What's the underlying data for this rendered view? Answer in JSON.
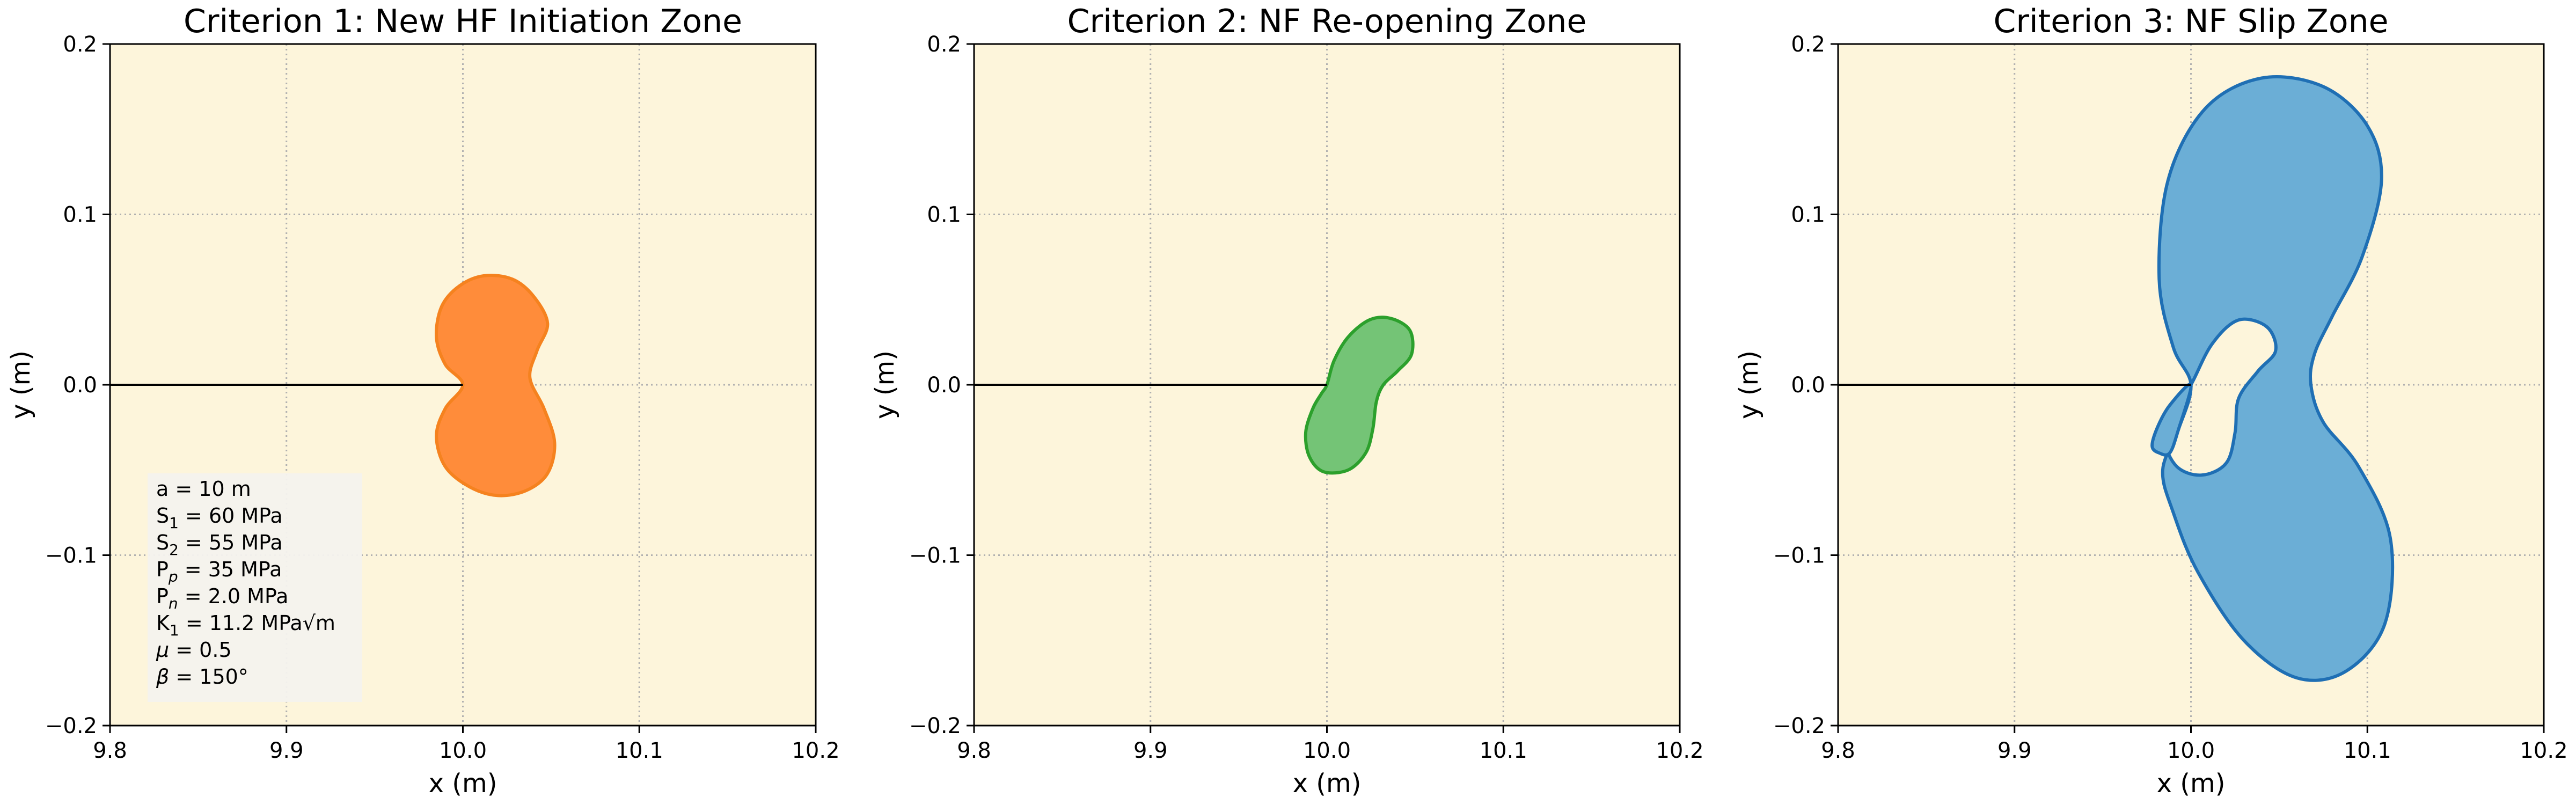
{
  "figure": {
    "background": "#ffffff",
    "plot_background": "#fdf5db"
  },
  "panels": [
    {
      "title": "Criterion 1: New HF Initiation Zone",
      "xlabel": "x (m)",
      "ylabel": "y (m)",
      "fill_color": "#ff8c3a",
      "edge_color": "#f5821f",
      "shape": "peanut",
      "legend": {
        "lines": [
          {
            "name": "a",
            "sub": "",
            "op": "=",
            "value": "10 m"
          },
          {
            "name": "S",
            "sub": "1",
            "op": "=",
            "value": "60 MPa"
          },
          {
            "name": "S",
            "sub": "2",
            "op": "=",
            "value": "55 MPa"
          },
          {
            "name": "P",
            "sub": "p",
            "op": "=",
            "value": "35 MPa"
          },
          {
            "name": "P",
            "sub": "n",
            "op": "=",
            "value": "2.0 MPa"
          },
          {
            "name": "K",
            "sub": "1",
            "op": "=",
            "value": "11.2 MPa√m"
          },
          {
            "name": "μ",
            "sub": "",
            "op": "=",
            "value": "0.5"
          },
          {
            "name": "β",
            "sub": "",
            "op": "=",
            "value": "150°"
          }
        ]
      }
    },
    {
      "title": "Criterion 2: NF Re-opening Zone",
      "xlabel": "x (m)",
      "ylabel": "y (m)",
      "fill_color": "#74c476",
      "edge_color": "#2ca02c",
      "shape": "bean"
    },
    {
      "title": "Criterion 3: NF Slip Zone",
      "xlabel": "x (m)",
      "ylabel": "y (m)",
      "fill_color": "#6baed6",
      "edge_color": "#1f6fb4",
      "shape": "lobes"
    }
  ],
  "chart_data": [
    {
      "type": "area",
      "title": "Criterion 1: New HF Initiation Zone",
      "xlabel": "x (m)",
      "ylabel": "y (m)",
      "xlim": [
        9.8,
        10.2
      ],
      "ylim": [
        -0.2,
        0.2
      ],
      "xticks": [
        "9.8",
        "9.9",
        "10.0",
        "10.1",
        "10.2"
      ],
      "yticks": [
        "−0.2",
        "−0.1",
        "0.0",
        "0.1",
        "0.2"
      ],
      "grid": true,
      "crack_line": {
        "x": [
          9.8,
          10.0
        ],
        "y": [
          0.0,
          0.0
        ]
      },
      "region_outline": [
        [
          10.0,
          0.0
        ],
        [
          9.99,
          0.012
        ],
        [
          9.985,
          0.028
        ],
        [
          9.988,
          0.046
        ],
        [
          9.998,
          0.058
        ],
        [
          10.012,
          0.064
        ],
        [
          10.028,
          0.062
        ],
        [
          10.04,
          0.052
        ],
        [
          10.048,
          0.036
        ],
        [
          10.042,
          0.02
        ],
        [
          10.038,
          0.004
        ],
        [
          10.046,
          -0.014
        ],
        [
          10.052,
          -0.034
        ],
        [
          10.048,
          -0.052
        ],
        [
          10.036,
          -0.062
        ],
        [
          10.02,
          -0.065
        ],
        [
          10.004,
          -0.06
        ],
        [
          9.99,
          -0.048
        ],
        [
          9.985,
          -0.03
        ],
        [
          9.99,
          -0.014
        ],
        [
          10.0,
          0.0
        ]
      ]
    },
    {
      "type": "area",
      "title": "Criterion 2: NF Re-opening Zone",
      "xlabel": "x (m)",
      "ylabel": "y (m)",
      "xlim": [
        9.8,
        10.2
      ],
      "ylim": [
        -0.2,
        0.2
      ],
      "xticks": [
        "9.8",
        "9.9",
        "10.0",
        "10.1",
        "10.2"
      ],
      "yticks": [
        "−0.2",
        "−0.1",
        "0.0",
        "0.1",
        "0.2"
      ],
      "grid": true,
      "crack_line": {
        "x": [
          9.8,
          10.0
        ],
        "y": [
          0.0,
          0.0
        ]
      },
      "region_outline": [
        [
          10.0,
          0.0
        ],
        [
          10.004,
          0.014
        ],
        [
          10.012,
          0.028
        ],
        [
          10.024,
          0.038
        ],
        [
          10.036,
          0.039
        ],
        [
          10.047,
          0.032
        ],
        [
          10.048,
          0.018
        ],
        [
          10.04,
          0.008
        ],
        [
          10.032,
          0.0
        ],
        [
          10.028,
          -0.01
        ],
        [
          10.026,
          -0.026
        ],
        [
          10.022,
          -0.04
        ],
        [
          10.012,
          -0.05
        ],
        [
          9.998,
          -0.051
        ],
        [
          9.99,
          -0.042
        ],
        [
          9.988,
          -0.028
        ],
        [
          9.992,
          -0.014
        ],
        [
          9.997,
          -0.005
        ],
        [
          10.0,
          0.0
        ]
      ]
    },
    {
      "type": "area",
      "title": "Criterion 3: NF Slip Zone",
      "xlabel": "x (m)",
      "ylabel": "y (m)",
      "xlim": [
        9.8,
        10.2
      ],
      "ylim": [
        -0.2,
        0.2
      ],
      "xticks": [
        "9.8",
        "9.9",
        "10.0",
        "10.1",
        "10.2"
      ],
      "yticks": [
        "−0.2",
        "−0.1",
        "0.0",
        "0.1",
        "0.2"
      ],
      "grid": true,
      "crack_line": {
        "x": [
          9.8,
          10.0
        ],
        "y": [
          0.0,
          0.0
        ]
      },
      "region_outline": [
        [
          10.0,
          0.0
        ],
        [
          9.99,
          0.022
        ],
        [
          9.982,
          0.062
        ],
        [
          9.987,
          0.12
        ],
        [
          10.008,
          0.162
        ],
        [
          10.04,
          0.18
        ],
        [
          10.075,
          0.175
        ],
        [
          10.1,
          0.152
        ],
        [
          10.108,
          0.12
        ],
        [
          10.097,
          0.075
        ],
        [
          10.08,
          0.04
        ],
        [
          10.07,
          0.018
        ],
        [
          10.068,
          0.0
        ],
        [
          10.075,
          -0.022
        ],
        [
          10.095,
          -0.048
        ],
        [
          10.113,
          -0.09
        ],
        [
          10.11,
          -0.14
        ],
        [
          10.088,
          -0.168
        ],
        [
          10.06,
          -0.172
        ],
        [
          10.03,
          -0.15
        ],
        [
          10.004,
          -0.11
        ],
        [
          9.99,
          -0.075
        ],
        [
          9.984,
          -0.05
        ],
        [
          9.993,
          -0.026
        ],
        [
          10.0,
          0.0
        ]
      ],
      "region_outline_extra": [
        [
          10.0,
          0.0
        ],
        [
          9.988,
          -0.012
        ],
        [
          9.981,
          -0.025
        ],
        [
          9.978,
          -0.036
        ],
        [
          9.982,
          -0.04
        ],
        [
          9.988,
          -0.04
        ],
        [
          9.993,
          -0.026
        ],
        [
          10.0,
          0.0
        ]
      ],
      "hole_outline": [
        [
          10.0,
          0.0
        ],
        [
          10.012,
          0.024
        ],
        [
          10.027,
          0.038
        ],
        [
          10.043,
          0.034
        ],
        [
          10.048,
          0.02
        ],
        [
          10.038,
          0.008
        ],
        [
          10.027,
          -0.008
        ],
        [
          10.025,
          -0.028
        ],
        [
          10.02,
          -0.046
        ],
        [
          10.006,
          -0.053
        ],
        [
          9.992,
          -0.048
        ],
        [
          9.985,
          -0.032
        ],
        [
          9.99,
          -0.016
        ],
        [
          10.0,
          0.0
        ]
      ]
    }
  ]
}
